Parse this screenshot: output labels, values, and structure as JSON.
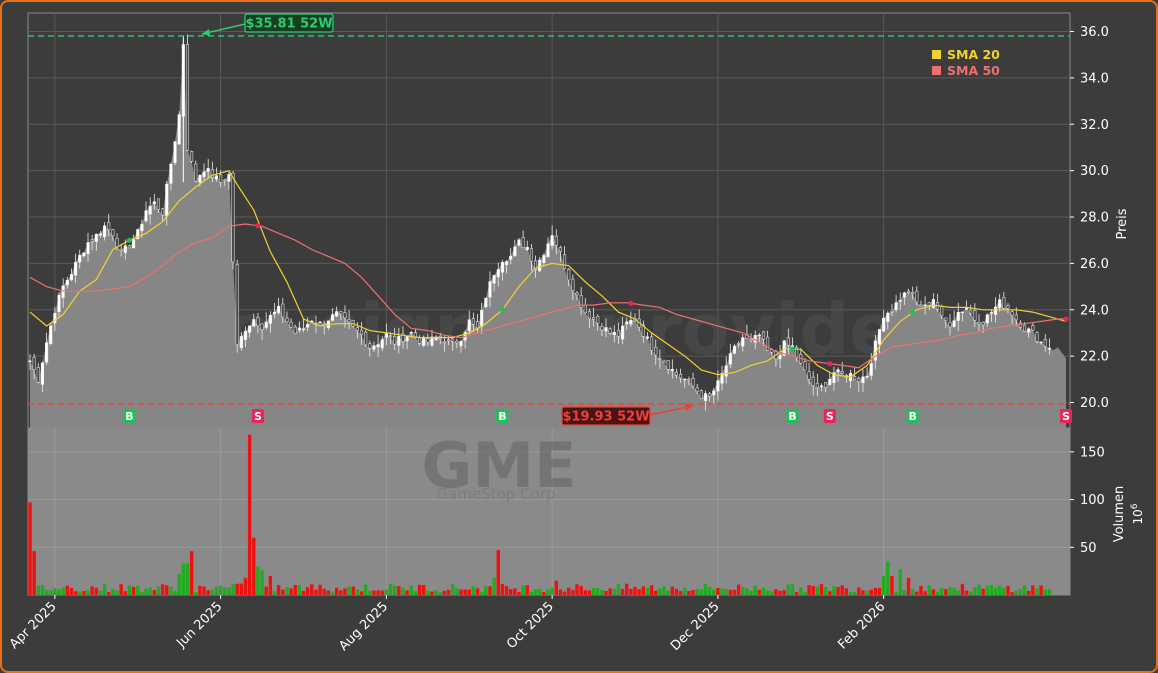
{
  "chart_data": {
    "type": "candlestick",
    "ticker": "GME",
    "company": "GameStop Corp",
    "watermark": "forexsignalsprovider",
    "price_axis": {
      "label": "Preis",
      "ylim": [
        18.9,
        36.8
      ],
      "ticks": [
        20.0,
        22.0,
        24.0,
        26.0,
        28.0,
        30.0,
        32.0,
        34.0,
        36.0
      ]
    },
    "volume_axis": {
      "label": "Volumen",
      "unit": "10",
      "unit_exp": "6",
      "ylim": [
        0,
        175
      ],
      "ticks": [
        50,
        100,
        150
      ]
    },
    "x_axis": {
      "ticks": [
        "Apr 2025",
        "Jun 2025",
        "Aug 2025",
        "Oct 2025",
        "Dec 2025",
        "Feb 2026"
      ]
    },
    "legend": {
      "placement": "top-right",
      "items": [
        {
          "label": "SMA 20",
          "color": "#f2d22e"
        },
        {
          "label": "SMA 50",
          "color": "#f07070"
        }
      ]
    },
    "high_52w": {
      "label": "$35.81 52W",
      "value": 35.81,
      "color": "#2ecc71"
    },
    "low_52w": {
      "label": "$19.93 52W",
      "value": 19.93,
      "color": "#e8423a"
    },
    "signals": [
      {
        "type": "B",
        "x": 24
      },
      {
        "type": "S",
        "x": 55
      },
      {
        "type": "B",
        "x": 114
      },
      {
        "type": "S",
        "x": 145
      },
      {
        "type": "B",
        "x": 184
      },
      {
        "type": "S",
        "x": 193
      },
      {
        "type": "B",
        "x": 213
      },
      {
        "type": "S",
        "x": 250
      }
    ],
    "colors": {
      "up": "#22aa22",
      "down": "#ee1111",
      "area": "#8a8a8a",
      "grid": "#5a5a5a",
      "bg": "#3c3c3c"
    },
    "close_points": [
      [
        0,
        21.8
      ],
      [
        2,
        21.0
      ],
      [
        4,
        22.6
      ],
      [
        6,
        24.0
      ],
      [
        8,
        25.0
      ],
      [
        10,
        25.6
      ],
      [
        12,
        26.3
      ],
      [
        14,
        26.9
      ],
      [
        16,
        27.2
      ],
      [
        18,
        27.6
      ],
      [
        20,
        27.3
      ],
      [
        22,
        26.4
      ],
      [
        24,
        26.8
      ],
      [
        26,
        27.3
      ],
      [
        28,
        28.3
      ],
      [
        30,
        28.6
      ],
      [
        32,
        28.2
      ],
      [
        34,
        30.3
      ],
      [
        36,
        32.4
      ],
      [
        37,
        35.5
      ],
      [
        38,
        31.0
      ],
      [
        40,
        29.6
      ],
      [
        42,
        30.1
      ],
      [
        44,
        29.8
      ],
      [
        46,
        29.5
      ],
      [
        48,
        29.8
      ],
      [
        50,
        22.4
      ],
      [
        52,
        23.2
      ],
      [
        54,
        23.6
      ],
      [
        56,
        23.3
      ],
      [
        58,
        23.7
      ],
      [
        60,
        24.0
      ],
      [
        62,
        23.5
      ],
      [
        64,
        23.0
      ],
      [
        66,
        23.2
      ],
      [
        68,
        23.6
      ],
      [
        70,
        23.4
      ],
      [
        72,
        23.6
      ],
      [
        74,
        23.8
      ],
      [
        76,
        23.5
      ],
      [
        78,
        23.2
      ],
      [
        80,
        22.9
      ],
      [
        82,
        22.4
      ],
      [
        84,
        22.6
      ],
      [
        86,
        22.9
      ],
      [
        88,
        22.6
      ],
      [
        90,
        22.8
      ],
      [
        92,
        23.0
      ],
      [
        94,
        22.7
      ],
      [
        96,
        22.6
      ],
      [
        98,
        22.8
      ],
      [
        100,
        22.7
      ],
      [
        102,
        22.5
      ],
      [
        104,
        22.8
      ],
      [
        106,
        23.5
      ],
      [
        108,
        23.1
      ],
      [
        110,
        24.6
      ],
      [
        112,
        25.6
      ],
      [
        114,
        26.2
      ],
      [
        116,
        26.3
      ],
      [
        118,
        26.9
      ],
      [
        120,
        26.7
      ],
      [
        122,
        25.8
      ],
      [
        124,
        26.5
      ],
      [
        126,
        27.3
      ],
      [
        128,
        26.4
      ],
      [
        130,
        25.4
      ],
      [
        132,
        24.6
      ],
      [
        134,
        23.9
      ],
      [
        136,
        23.6
      ],
      [
        138,
        23.3
      ],
      [
        140,
        23.0
      ],
      [
        142,
        22.9
      ],
      [
        144,
        23.4
      ],
      [
        146,
        23.6
      ],
      [
        148,
        23.0
      ],
      [
        150,
        22.4
      ],
      [
        152,
        22.0
      ],
      [
        154,
        21.6
      ],
      [
        156,
        21.2
      ],
      [
        158,
        21.0
      ],
      [
        160,
        20.7
      ],
      [
        162,
        20.3
      ],
      [
        164,
        20.2
      ],
      [
        166,
        20.8
      ],
      [
        168,
        21.6
      ],
      [
        170,
        22.3
      ],
      [
        172,
        22.8
      ],
      [
        174,
        22.6
      ],
      [
        176,
        22.9
      ],
      [
        178,
        22.2
      ],
      [
        180,
        21.9
      ],
      [
        182,
        22.5
      ],
      [
        184,
        22.4
      ],
      [
        186,
        21.6
      ],
      [
        188,
        21.0
      ],
      [
        190,
        20.5
      ],
      [
        192,
        20.8
      ],
      [
        194,
        21.3
      ],
      [
        196,
        21.2
      ],
      [
        198,
        21.2
      ],
      [
        200,
        21.0
      ],
      [
        202,
        21.2
      ],
      [
        204,
        22.5
      ],
      [
        206,
        23.8
      ],
      [
        208,
        24.0
      ],
      [
        210,
        24.5
      ],
      [
        212,
        24.8
      ],
      [
        214,
        24.3
      ],
      [
        216,
        24.1
      ],
      [
        218,
        24.5
      ],
      [
        220,
        23.6
      ],
      [
        222,
        23.4
      ],
      [
        224,
        23.9
      ],
      [
        226,
        24.1
      ],
      [
        228,
        23.6
      ],
      [
        230,
        23.5
      ],
      [
        232,
        23.9
      ],
      [
        234,
        24.3
      ],
      [
        236,
        24.1
      ],
      [
        238,
        23.6
      ],
      [
        240,
        23.2
      ],
      [
        242,
        23.0
      ],
      [
        244,
        22.6
      ],
      [
        246,
        22.4
      ],
      [
        248,
        22.3
      ],
      [
        250,
        22.0
      ]
    ],
    "sma20_points": [
      [
        0,
        23.9
      ],
      [
        4,
        23.3
      ],
      [
        8,
        23.8
      ],
      [
        12,
        24.8
      ],
      [
        16,
        25.3
      ],
      [
        20,
        26.6
      ],
      [
        24,
        27.0
      ],
      [
        28,
        27.3
      ],
      [
        32,
        27.8
      ],
      [
        36,
        28.7
      ],
      [
        40,
        29.3
      ],
      [
        44,
        29.8
      ],
      [
        48,
        30.0
      ],
      [
        50,
        29.4
      ],
      [
        54,
        28.3
      ],
      [
        58,
        26.5
      ],
      [
        62,
        25.2
      ],
      [
        66,
        23.6
      ],
      [
        70,
        23.3
      ],
      [
        74,
        23.4
      ],
      [
        78,
        23.4
      ],
      [
        82,
        23.1
      ],
      [
        86,
        23.0
      ],
      [
        90,
        22.9
      ],
      [
        94,
        22.8
      ],
      [
        98,
        22.8
      ],
      [
        102,
        22.8
      ],
      [
        106,
        23.0
      ],
      [
        110,
        23.4
      ],
      [
        114,
        24.0
      ],
      [
        118,
        25.0
      ],
      [
        122,
        25.8
      ],
      [
        126,
        26.0
      ],
      [
        130,
        25.9
      ],
      [
        134,
        25.2
      ],
      [
        138,
        24.6
      ],
      [
        142,
        23.9
      ],
      [
        146,
        23.6
      ],
      [
        150,
        23.0
      ],
      [
        154,
        22.5
      ],
      [
        158,
        22.0
      ],
      [
        162,
        21.4
      ],
      [
        166,
        21.2
      ],
      [
        170,
        21.3
      ],
      [
        174,
        21.6
      ],
      [
        178,
        21.8
      ],
      [
        182,
        22.3
      ],
      [
        186,
        22.3
      ],
      [
        190,
        21.6
      ],
      [
        194,
        21.2
      ],
      [
        198,
        21.1
      ],
      [
        202,
        21.6
      ],
      [
        206,
        22.7
      ],
      [
        210,
        23.5
      ],
      [
        214,
        24.0
      ],
      [
        218,
        24.2
      ],
      [
        222,
        24.1
      ],
      [
        226,
        24.1
      ],
      [
        230,
        24.0
      ],
      [
        234,
        24.0
      ],
      [
        238,
        24.0
      ],
      [
        242,
        23.9
      ],
      [
        246,
        23.7
      ],
      [
        250,
        23.5
      ]
    ],
    "sma50_points": [
      [
        0,
        25.4
      ],
      [
        4,
        25.0
      ],
      [
        8,
        24.8
      ],
      [
        12,
        24.8
      ],
      [
        16,
        24.8
      ],
      [
        20,
        24.9
      ],
      [
        24,
        25.0
      ],
      [
        28,
        25.4
      ],
      [
        32,
        25.9
      ],
      [
        36,
        26.5
      ],
      [
        40,
        26.9
      ],
      [
        44,
        27.1
      ],
      [
        48,
        27.6
      ],
      [
        52,
        27.7
      ],
      [
        56,
        27.6
      ],
      [
        60,
        27.3
      ],
      [
        64,
        27.0
      ],
      [
        68,
        26.6
      ],
      [
        72,
        26.3
      ],
      [
        76,
        26.0
      ],
      [
        80,
        25.4
      ],
      [
        84,
        24.6
      ],
      [
        88,
        23.8
      ],
      [
        92,
        23.2
      ],
      [
        96,
        23.1
      ],
      [
        100,
        22.9
      ],
      [
        104,
        22.8
      ],
      [
        108,
        23.0
      ],
      [
        112,
        23.2
      ],
      [
        116,
        23.4
      ],
      [
        120,
        23.6
      ],
      [
        124,
        23.8
      ],
      [
        128,
        24.0
      ],
      [
        132,
        24.2
      ],
      [
        136,
        24.2
      ],
      [
        140,
        24.3
      ],
      [
        144,
        24.3
      ],
      [
        148,
        24.2
      ],
      [
        152,
        24.1
      ],
      [
        156,
        23.8
      ],
      [
        160,
        23.6
      ],
      [
        164,
        23.4
      ],
      [
        168,
        23.2
      ],
      [
        172,
        23.0
      ],
      [
        176,
        22.6
      ],
      [
        180,
        22.2
      ],
      [
        184,
        22.0
      ],
      [
        188,
        21.8
      ],
      [
        192,
        21.7
      ],
      [
        196,
        21.6
      ],
      [
        200,
        21.5
      ],
      [
        204,
        22.0
      ],
      [
        208,
        22.4
      ],
      [
        212,
        22.5
      ],
      [
        216,
        22.6
      ],
      [
        220,
        22.7
      ],
      [
        224,
        22.9
      ],
      [
        228,
        23.0
      ],
      [
        232,
        23.2
      ],
      [
        236,
        23.3
      ],
      [
        240,
        23.4
      ],
      [
        244,
        23.5
      ],
      [
        248,
        23.6
      ],
      [
        250,
        23.6
      ]
    ],
    "volume_spikes": [
      [
        0,
        97,
        "down"
      ],
      [
        1,
        46,
        "down"
      ],
      [
        36,
        22,
        "up"
      ],
      [
        37,
        33,
        "up"
      ],
      [
        38,
        33,
        "up"
      ],
      [
        39,
        46,
        "down"
      ],
      [
        51,
        12,
        "down"
      ],
      [
        52,
        18,
        "down"
      ],
      [
        53,
        168,
        "down"
      ],
      [
        54,
        60,
        "down"
      ],
      [
        55,
        30,
        "up"
      ],
      [
        56,
        26,
        "up"
      ],
      [
        58,
        20,
        "down"
      ],
      [
        112,
        18,
        "up"
      ],
      [
        113,
        47,
        "down"
      ],
      [
        127,
        15,
        "down"
      ],
      [
        206,
        20,
        "up"
      ],
      [
        207,
        35,
        "up"
      ],
      [
        208,
        20,
        "down"
      ],
      [
        210,
        27,
        "up"
      ],
      [
        212,
        18,
        "down"
      ]
    ]
  }
}
